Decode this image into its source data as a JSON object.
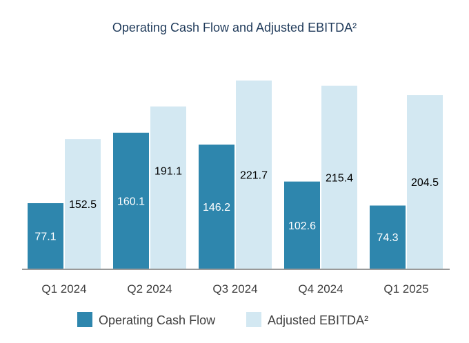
{
  "chart_data": {
    "type": "bar",
    "title": "Operating Cash Flow and Adjusted EBITDA²",
    "categories": [
      "Q1 2024",
      "Q2 2024",
      "Q3 2024",
      "Q4 2024",
      "Q1 2025"
    ],
    "series": [
      {
        "name": "Operating Cash Flow",
        "values": [
          77.1,
          160.1,
          146.2,
          102.6,
          74.3
        ],
        "color": "#2e86ad",
        "label_color": "#ffffff"
      },
      {
        "name": "Adjusted EBITDA²",
        "values": [
          152.5,
          191.1,
          221.7,
          215.4,
          204.5
        ],
        "color": "#d3e8f2",
        "label_color": "#000000"
      }
    ],
    "value_labels": [
      [
        "77.1",
        "160.1",
        "146.2",
        "102.6",
        "74.3"
      ],
      [
        "152.5",
        "191.1",
        "221.7",
        "215.4",
        "204.5"
      ]
    ],
    "ylim": [
      0,
      240
    ],
    "grid": false,
    "legend": "bottom"
  }
}
